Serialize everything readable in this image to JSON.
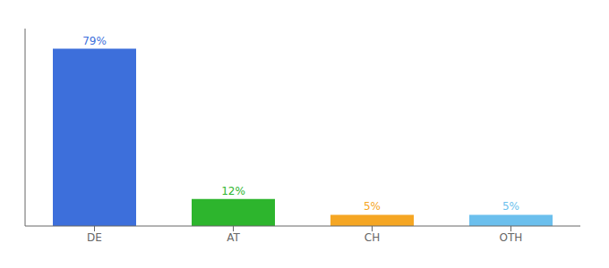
{
  "chart_data": {
    "type": "bar",
    "categories": [
      "DE",
      "AT",
      "CH",
      "OTH"
    ],
    "values": [
      79,
      12,
      5,
      5
    ],
    "value_labels": [
      "79%",
      "12%",
      "5%",
      "5%"
    ],
    "colors": [
      "#3d6fdb",
      "#2db52d",
      "#f5a623",
      "#6bbfed"
    ],
    "ylim": [
      0,
      88
    ],
    "data_labels": true,
    "tick_labels": "x",
    "grid": false
  }
}
